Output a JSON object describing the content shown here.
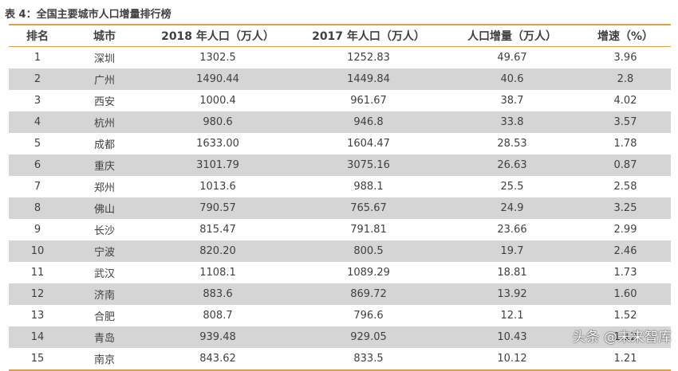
{
  "caption": "表 4：全国主要城市人口增量排行榜",
  "columns": {
    "rank": "排名",
    "city": "城市",
    "pop2018": "2018 年人口（万人）",
    "pop2017": "2017 年人口（万人）",
    "increase": "人口增量（万人）",
    "rate": "增速（%）"
  },
  "rows": [
    {
      "rank": "1",
      "city": "深圳",
      "pop2018": "1302.5",
      "pop2017": "1252.83",
      "increase": "49.67",
      "rate": "3.96"
    },
    {
      "rank": "2",
      "city": "广州",
      "pop2018": "1490.44",
      "pop2017": "1449.84",
      "increase": "40.6",
      "rate": "2.8"
    },
    {
      "rank": "3",
      "city": "西安",
      "pop2018": "1000.4",
      "pop2017": "961.67",
      "increase": "38.7",
      "rate": "4.02"
    },
    {
      "rank": "4",
      "city": "杭州",
      "pop2018": "980.6",
      "pop2017": "946.8",
      "increase": "33.8",
      "rate": "3.57"
    },
    {
      "rank": "5",
      "city": "成都",
      "pop2018": "1633.00",
      "pop2017": "1604.47",
      "increase": "28.53",
      "rate": "1.78"
    },
    {
      "rank": "6",
      "city": "重庆",
      "pop2018": "3101.79",
      "pop2017": "3075.16",
      "increase": "26.63",
      "rate": "0.87"
    },
    {
      "rank": "7",
      "city": "郑州",
      "pop2018": "1013.6",
      "pop2017": "988.1",
      "increase": "25.5",
      "rate": "2.58"
    },
    {
      "rank": "8",
      "city": "佛山",
      "pop2018": "790.57",
      "pop2017": "765.67",
      "increase": "24.9",
      "rate": "3.25"
    },
    {
      "rank": "9",
      "city": "长沙",
      "pop2018": "815.47",
      "pop2017": "791.81",
      "increase": "23.66",
      "rate": "2.99"
    },
    {
      "rank": "10",
      "city": "宁波",
      "pop2018": "820.20",
      "pop2017": "800.5",
      "increase": "19.7",
      "rate": "2.46"
    },
    {
      "rank": "11",
      "city": "武汉",
      "pop2018": "1108.1",
      "pop2017": "1089.29",
      "increase": "18.81",
      "rate": "1.73"
    },
    {
      "rank": "12",
      "city": "济南",
      "pop2018": "883.6",
      "pop2017": "869.72",
      "increase": "13.92",
      "rate": "1.60"
    },
    {
      "rank": "13",
      "city": "合肥",
      "pop2018": "808.7",
      "pop2017": "796.6",
      "increase": "12.1",
      "rate": "1.52"
    },
    {
      "rank": "14",
      "city": "青岛",
      "pop2018": "939.48",
      "pop2017": "929.05",
      "increase": "10.43",
      "rate": "1.12"
    },
    {
      "rank": "15",
      "city": "南京",
      "pop2018": "843.62",
      "pop2017": "833.5",
      "increase": "10.12",
      "rate": "1.21"
    }
  ],
  "watermark": "头条 @未来智库",
  "colors": {
    "rule": "#d9a24a",
    "shade": "#d5d5d5",
    "text": "#404040"
  }
}
